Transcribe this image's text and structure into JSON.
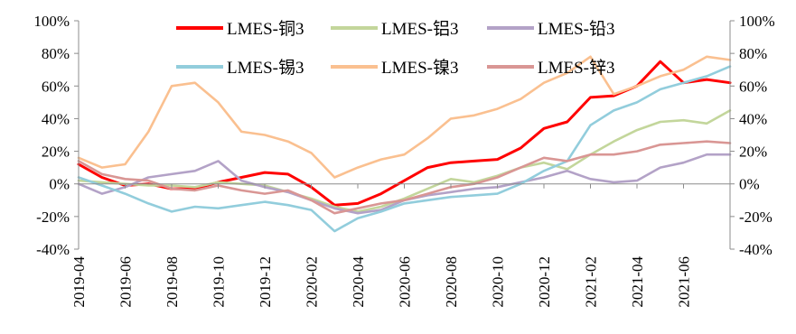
{
  "chart_data": {
    "type": "line",
    "title": "",
    "xlabel": "",
    "ylabel": "",
    "ylim": [
      -40,
      100
    ],
    "yticks": [
      -40,
      -20,
      0,
      20,
      40,
      60,
      80,
      100
    ],
    "ytick_labels": [
      "-40%",
      "-20%",
      "0%",
      "20%",
      "40%",
      "60%",
      "80%",
      "100%"
    ],
    "xlim": [
      "2019-04",
      "2021-08"
    ],
    "xtick_labels": [
      "2019-04",
      "2019-06",
      "2019-08",
      "2019-10",
      "2019-12",
      "2020-02",
      "2020-04",
      "2020-06",
      "2020-08",
      "2020-10",
      "2020-12",
      "2021-02",
      "2021-04",
      "2021-06"
    ],
    "grid": false,
    "legend": "top",
    "dual_y_axis": true,
    "series": [
      {
        "name": "LMES-铜3",
        "color": "#ff0000",
        "x": [
          "2019-04",
          "2019-05",
          "2019-06",
          "2019-07",
          "2019-08",
          "2019-09",
          "2019-10",
          "2019-11",
          "2019-12",
          "2020-01",
          "2020-02",
          "2020-03",
          "2020-04",
          "2020-05",
          "2020-06",
          "2020-07",
          "2020-08",
          "2020-09",
          "2020-10",
          "2020-11",
          "2020-12",
          "2021-01",
          "2021-02",
          "2021-03",
          "2021-04",
          "2021-05",
          "2021-06",
          "2021-07",
          "2021-08"
        ],
        "values": [
          12,
          4,
          -1,
          0,
          -3,
          -3,
          1,
          4,
          7,
          6,
          -2,
          -13,
          -12,
          -6,
          2,
          10,
          13,
          14,
          15,
          22,
          34,
          38,
          53,
          54,
          60,
          75,
          62,
          64,
          62
        ]
      },
      {
        "name": "LMES-铝3",
        "color": "#c3d69b",
        "x": [
          "2019-04",
          "2019-05",
          "2019-06",
          "2019-07",
          "2019-08",
          "2019-09",
          "2019-10",
          "2019-11",
          "2019-12",
          "2020-01",
          "2020-02",
          "2020-03",
          "2020-04",
          "2020-05",
          "2020-06",
          "2020-07",
          "2020-08",
          "2020-09",
          "2020-10",
          "2020-11",
          "2020-12",
          "2021-01",
          "2021-02",
          "2021-03",
          "2021-04",
          "2021-05",
          "2021-06",
          "2021-07",
          "2021-08"
        ],
        "values": [
          2,
          1,
          0,
          -1,
          -1,
          -2,
          1,
          0,
          -1,
          -5,
          -9,
          -14,
          -17,
          -14,
          -9,
          -3,
          3,
          1,
          5,
          10,
          13,
          9,
          18,
          26,
          33,
          38,
          39,
          37,
          45
        ]
      },
      {
        "name": "LMES-铅3",
        "color": "#b3a2c7",
        "x": [
          "2019-04",
          "2019-05",
          "2019-06",
          "2019-07",
          "2019-08",
          "2019-09",
          "2019-10",
          "2019-11",
          "2019-12",
          "2020-01",
          "2020-02",
          "2020-03",
          "2020-04",
          "2020-05",
          "2020-06",
          "2020-07",
          "2020-08",
          "2020-09",
          "2020-10",
          "2020-11",
          "2020-12",
          "2021-01",
          "2021-02",
          "2021-03",
          "2021-04",
          "2021-05",
          "2021-06",
          "2021-07",
          "2021-08"
        ],
        "values": [
          0,
          -6,
          -2,
          4,
          6,
          8,
          14,
          2,
          -2,
          -5,
          -10,
          -15,
          -18,
          -16,
          -10,
          -7,
          -5,
          -3,
          -2,
          1,
          4,
          8,
          3,
          1,
          2,
          10,
          13,
          18,
          18
        ]
      },
      {
        "name": "LMES-锡3",
        "color": "#92cddc",
        "x": [
          "2019-04",
          "2019-05",
          "2019-06",
          "2019-07",
          "2019-08",
          "2019-09",
          "2019-10",
          "2019-11",
          "2019-12",
          "2020-01",
          "2020-02",
          "2020-03",
          "2020-04",
          "2020-05",
          "2020-06",
          "2020-07",
          "2020-08",
          "2020-09",
          "2020-10",
          "2020-11",
          "2020-12",
          "2021-01",
          "2021-02",
          "2021-03",
          "2021-04",
          "2021-05",
          "2021-06",
          "2021-07",
          "2021-08"
        ],
        "values": [
          4,
          -1,
          -6,
          -12,
          -17,
          -14,
          -15,
          -13,
          -11,
          -13,
          -16,
          -29,
          -21,
          -17,
          -12,
          -10,
          -8,
          -7,
          -6,
          0,
          8,
          14,
          36,
          45,
          50,
          58,
          62,
          66,
          72
        ]
      },
      {
        "name": "LMES-镍3",
        "color": "#fac090",
        "x": [
          "2019-04",
          "2019-05",
          "2019-06",
          "2019-07",
          "2019-08",
          "2019-09",
          "2019-10",
          "2019-11",
          "2019-12",
          "2020-01",
          "2020-02",
          "2020-03",
          "2020-04",
          "2020-05",
          "2020-06",
          "2020-07",
          "2020-08",
          "2020-09",
          "2020-10",
          "2020-11",
          "2020-12",
          "2021-01",
          "2021-02",
          "2021-03",
          "2021-04",
          "2021-05",
          "2021-06",
          "2021-07",
          "2021-08"
        ],
        "values": [
          16,
          10,
          12,
          32,
          60,
          62,
          50,
          32,
          30,
          26,
          19,
          4,
          10,
          15,
          18,
          28,
          40,
          42,
          46,
          52,
          62,
          68,
          78,
          55,
          60,
          66,
          70,
          78,
          76
        ]
      },
      {
        "name": "LMES-锌3",
        "color": "#d99694",
        "x": [
          "2019-04",
          "2019-05",
          "2019-06",
          "2019-07",
          "2019-08",
          "2019-09",
          "2019-10",
          "2019-11",
          "2019-12",
          "2020-01",
          "2020-02",
          "2020-03",
          "2020-04",
          "2020-05",
          "2020-06",
          "2020-07",
          "2020-08",
          "2020-09",
          "2020-10",
          "2020-11",
          "2020-12",
          "2021-01",
          "2021-02",
          "2021-03",
          "2021-04",
          "2021-05",
          "2021-06",
          "2021-07",
          "2021-08"
        ],
        "values": [
          14,
          6,
          3,
          2,
          -3,
          -4,
          -1,
          -4,
          -6,
          -4,
          -10,
          -18,
          -15,
          -12,
          -10,
          -6,
          -2,
          0,
          4,
          10,
          16,
          14,
          18,
          18,
          20,
          24,
          25,
          26,
          25
        ]
      }
    ]
  }
}
